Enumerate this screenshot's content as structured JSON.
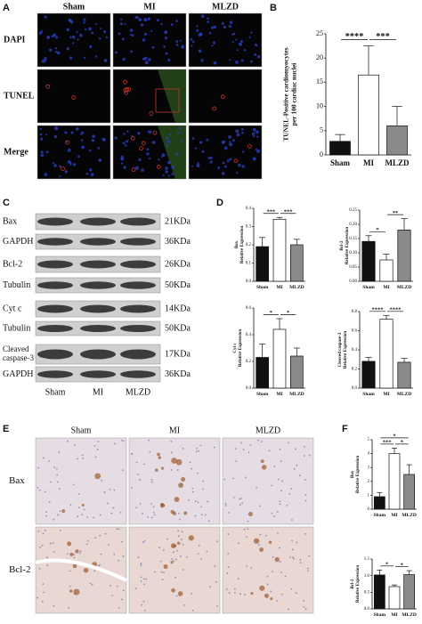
{
  "figure": {
    "panel_labels": [
      "A",
      "B",
      "C",
      "D",
      "E",
      "F"
    ],
    "panel_a": {
      "columns": [
        "Sham",
        "MI",
        "MLZD"
      ],
      "rows": [
        "DAPI",
        "TUNEL",
        "Merge"
      ]
    },
    "panel_c": {
      "columns": [
        "Sham",
        "MI",
        "MLZD"
      ],
      "rows": [
        {
          "label": "Bax",
          "size": "21KDa"
        },
        {
          "label": "GAPDH",
          "size": "36KDa"
        },
        {
          "label": "Bcl-2",
          "size": "26KDa"
        },
        {
          "label": "Tubulin",
          "size": "50KDa"
        },
        {
          "label": "Cyt c",
          "size": "14KDa"
        },
        {
          "label": "Tubulin",
          "size": "50KDa"
        },
        {
          "label": "Cleaved caspase-3",
          "size": "17KDa"
        },
        {
          "label": "GAPDH",
          "size": "36KDa"
        }
      ]
    },
    "panel_e": {
      "columns": [
        "Sham",
        "MI",
        "MLZD"
      ],
      "rows": [
        "Bax",
        "Bcl-2"
      ]
    }
  },
  "chart_data": [
    {
      "type": "bar",
      "ylabel": [
        "TUNEL-Positive cardiomyocytes",
        "per 100 cardiac nuclei"
      ],
      "categories": [
        "Sham",
        "MI",
        "MLZD"
      ],
      "values": [
        2.8,
        16.5,
        6
      ],
      "errors": [
        1.4,
        6,
        4
      ],
      "colors": [
        "#111111",
        "#ffffff",
        "#8a8a8a"
      ],
      "ylim": [
        0,
        25
      ],
      "yticks": [
        0,
        5,
        10,
        15,
        20,
        25
      ],
      "annotations": [
        {
          "text": "****",
          "between": [
            "Sham",
            "MI"
          ]
        },
        {
          "text": "***",
          "between": [
            "MI",
            "MLZD"
          ]
        }
      ]
    },
    {
      "type": "bar",
      "ylabel": [
        "Bax",
        "Relative Expression"
      ],
      "categories": [
        "Sham",
        "MI",
        "MLZD"
      ],
      "values": [
        0.19,
        0.34,
        0.2
      ],
      "errors": [
        0.05,
        0.01,
        0.03
      ],
      "colors": [
        "#111111",
        "#ffffff",
        "#8a8a8a"
      ],
      "ylim": [
        0,
        0.4
      ],
      "yticks": [
        {
          "value": 0,
          "label": "0.0"
        },
        0.1,
        0.2,
        0.3,
        0.4
      ],
      "annotations": [
        {
          "text": "***",
          "between": [
            "Sham",
            "MI"
          ]
        },
        {
          "text": "***",
          "between": [
            "MI",
            "MLZD"
          ]
        }
      ]
    },
    {
      "type": "bar",
      "ylabel": [
        "Bcl-2",
        "Relative Expression"
      ],
      "categories": [
        "Sham",
        "MI",
        "MLZD"
      ],
      "values": [
        0.14,
        0.075,
        0.18
      ],
      "errors": [
        0.02,
        0.02,
        0.04
      ],
      "colors": [
        "#111111",
        "#ffffff",
        "#8a8a8a"
      ],
      "ylim": [
        0,
        0.25
      ],
      "yticks": [
        {
          "value": 0,
          "label": "0.00"
        },
        0.05,
        {
          "value": 0.1,
          "label": "0.10"
        },
        0.15,
        {
          "value": 0.2,
          "label": "0.20"
        },
        0.25
      ],
      "annotations": [
        {
          "text": "*",
          "between": [
            "Sham",
            "MI"
          ]
        },
        {
          "text": "**",
          "between": [
            "MI",
            "MLZD"
          ]
        }
      ]
    },
    {
      "type": "bar",
      "ylabel": [
        "Cyt c",
        "Relative Expression"
      ],
      "categories": [
        "Sham",
        "MI",
        "MLZD"
      ],
      "values": [
        0.23,
        0.44,
        0.24
      ],
      "errors": [
        0.1,
        0.08,
        0.06
      ],
      "colors": [
        "#111111",
        "#ffffff",
        "#8a8a8a"
      ],
      "ylim": [
        0,
        0.6
      ],
      "yticks": [
        {
          "value": 0,
          "label": "0.0"
        },
        0.2,
        0.4,
        0.6
      ],
      "annotations": [
        {
          "text": "*",
          "between": [
            "Sham",
            "MI"
          ]
        },
        {
          "text": "*",
          "between": [
            "MI",
            "MLZD"
          ]
        }
      ]
    },
    {
      "type": "bar",
      "ylabel": [
        "Cleaved caspase-3",
        "Relative Expression"
      ],
      "categories": [
        "Sham",
        "MI",
        "MLZD"
      ],
      "values": [
        0.28,
        0.72,
        0.27
      ],
      "errors": [
        0.04,
        0.04,
        0.04
      ],
      "colors": [
        "#111111",
        "#ffffff",
        "#8a8a8a"
      ],
      "ylim": [
        0,
        0.8
      ],
      "yticks": [
        {
          "value": 0,
          "label": "0.0"
        },
        0.2,
        0.4,
        0.6,
        0.8
      ],
      "annotations": [
        {
          "text": "****",
          "between": [
            "Sham",
            "MI"
          ]
        },
        {
          "text": "****",
          "between": [
            "MI",
            "MLZD"
          ]
        }
      ]
    },
    {
      "type": "bar",
      "ylabel": [
        "Bax",
        "Relative Expression"
      ],
      "categories": [
        "Sham",
        "MI",
        "MLZD"
      ],
      "values": [
        0.9,
        4.0,
        2.5
      ],
      "errors": [
        0.3,
        0.4,
        0.7
      ],
      "colors": [
        "#111111",
        "#ffffff",
        "#8a8a8a"
      ],
      "ylim": [
        0,
        5
      ],
      "yticks": [
        0,
        1,
        2,
        3,
        4,
        5
      ],
      "annotations": [
        {
          "text": "***",
          "between": [
            "Sham",
            "MI"
          ]
        },
        {
          "text": "*",
          "between": [
            "MI",
            "MLZD"
          ]
        },
        {
          "text": "*",
          "between": [
            "Sham",
            "MLZD"
          ]
        }
      ]
    },
    {
      "type": "bar",
      "ylabel": [
        "Bcl-2",
        "Relative Expression"
      ],
      "categories": [
        "Sham",
        "MI",
        "MLZD"
      ],
      "values": [
        1.02,
        0.67,
        1.03
      ],
      "errors": [
        0.15,
        0.05,
        0.12
      ],
      "colors": [
        "#111111",
        "#ffffff",
        "#8a8a8a"
      ],
      "ylim": [
        0,
        1.5
      ],
      "yticks": [
        {
          "value": 0,
          "label": "0.0"
        },
        0.5,
        {
          "value": 1,
          "label": "1.0"
        },
        1.5
      ],
      "annotations": [
        {
          "text": "*",
          "between": [
            "Sham",
            "MI"
          ]
        },
        {
          "text": "*",
          "between": [
            "MI",
            "MLZD"
          ]
        }
      ]
    }
  ]
}
